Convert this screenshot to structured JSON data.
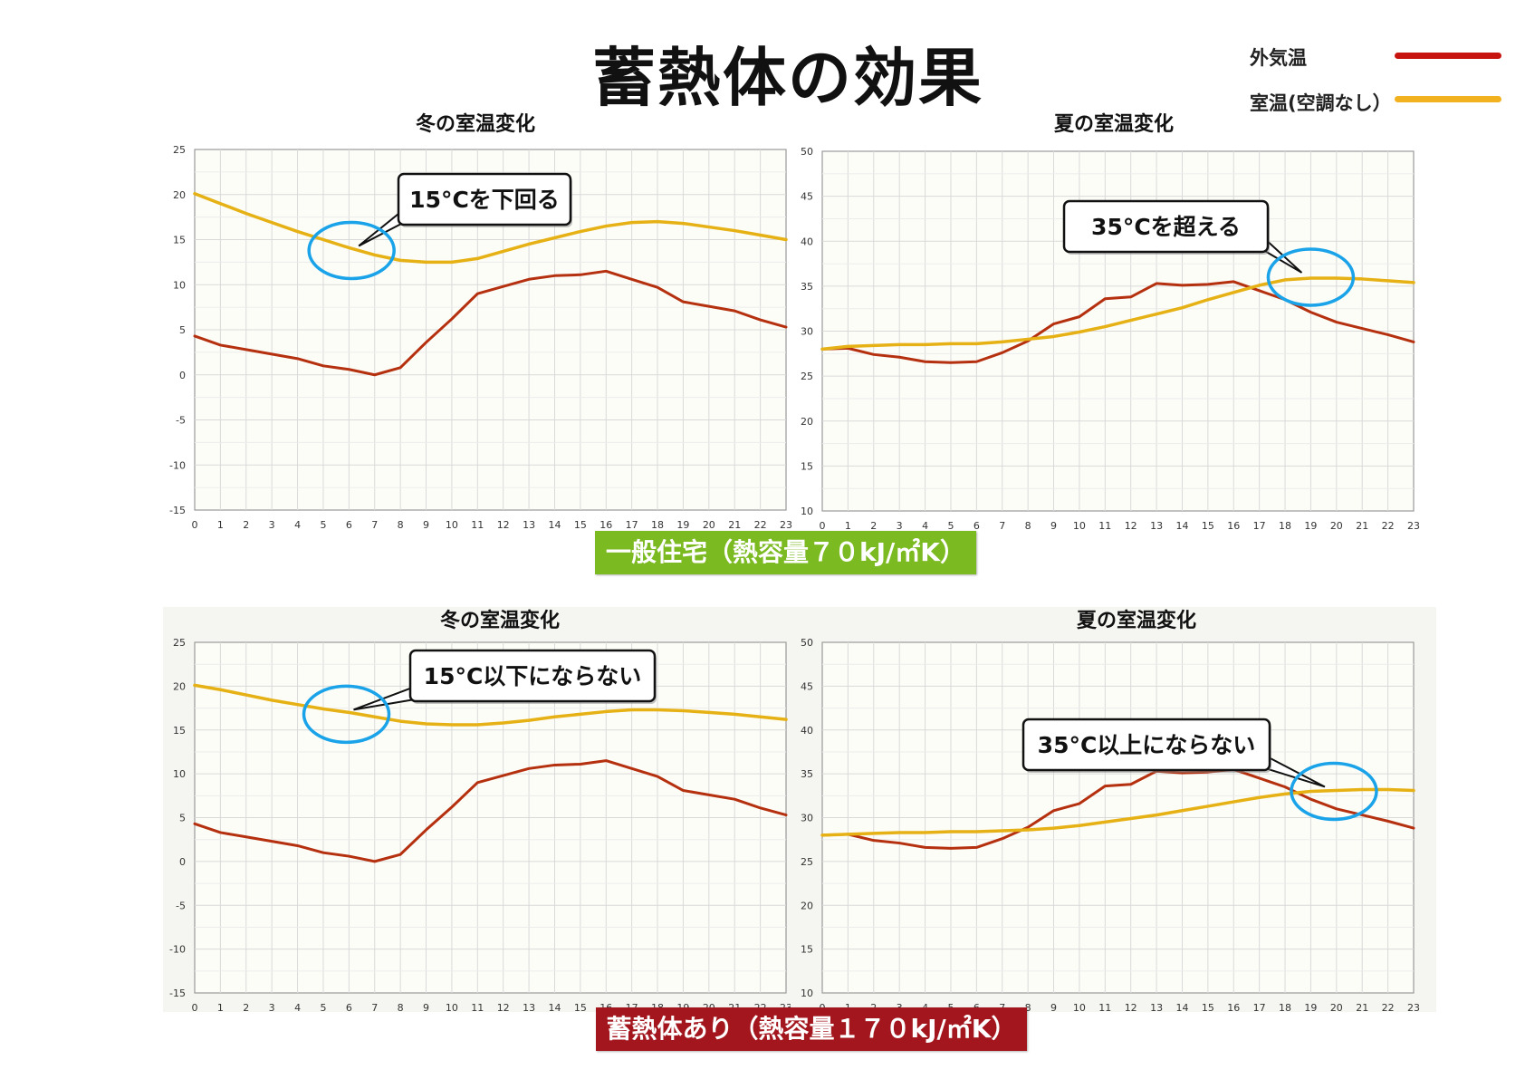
{
  "title": "蓄熱体の効果",
  "legend": {
    "items": [
      {
        "label": "外気温",
        "color": "#c8140f"
      },
      {
        "label": "室温(空調なし）",
        "color": "#f2b21f"
      }
    ]
  },
  "colors": {
    "outdoor": "#b5300f",
    "indoor": "#e6b114",
    "grid": "#d9d9d9",
    "callout_circle": "#1aa3e8"
  },
  "badges": {
    "general": "一般住宅（熱容量７０kJ/㎡K）",
    "thermal": "蓄熱体あり（熱容量１７０kJ/㎡K）"
  },
  "chart_data": [
    {
      "type": "line",
      "title": "冬の室温変化",
      "x": [
        0,
        1,
        2,
        3,
        4,
        5,
        6,
        7,
        8,
        9,
        10,
        11,
        12,
        13,
        14,
        15,
        16,
        17,
        18,
        19,
        20,
        21,
        22,
        23
      ],
      "ylim": [
        -15,
        25
      ],
      "yticks": [
        -15,
        -10,
        -5,
        0,
        5,
        10,
        15,
        20,
        25
      ],
      "grid": true,
      "series": [
        {
          "key": "outdoor",
          "values": [
            4.3,
            3.3,
            2.8,
            2.3,
            1.8,
            1.0,
            0.6,
            0.0,
            0.8,
            3.6,
            6.2,
            9.0,
            9.8,
            10.6,
            11.0,
            11.1,
            11.5,
            10.6,
            9.7,
            8.1,
            7.6,
            7.1,
            6.1,
            5.3
          ]
        },
        {
          "key": "indoor",
          "values": [
            20.1,
            19.0,
            17.9,
            16.9,
            15.9,
            15.0,
            14.1,
            13.3,
            12.7,
            12.5,
            12.5,
            12.9,
            13.7,
            14.5,
            15.2,
            15.9,
            16.5,
            16.9,
            17.0,
            16.8,
            16.4,
            16.0,
            15.5,
            15.0
          ]
        }
      ],
      "callout": {
        "text": "15°Cを下回る",
        "x": 6.1,
        "y": 13.8
      }
    },
    {
      "type": "line",
      "title": "夏の室温変化",
      "x": [
        0,
        1,
        2,
        3,
        4,
        5,
        6,
        7,
        8,
        9,
        10,
        11,
        12,
        13,
        14,
        15,
        16,
        17,
        18,
        19,
        20,
        21,
        22,
        23
      ],
      "ylim": [
        10,
        50
      ],
      "yticks": [
        10,
        15,
        20,
        25,
        30,
        35,
        40,
        45,
        50
      ],
      "grid": true,
      "series": [
        {
          "key": "outdoor",
          "values": [
            28.0,
            28.1,
            27.4,
            27.1,
            26.6,
            26.5,
            26.6,
            27.6,
            28.9,
            30.8,
            31.6,
            33.6,
            33.8,
            35.3,
            35.1,
            35.2,
            35.5,
            34.5,
            33.5,
            32.1,
            31.0,
            30.3,
            29.6,
            28.8
          ]
        },
        {
          "key": "indoor",
          "values": [
            28.0,
            28.3,
            28.4,
            28.5,
            28.5,
            28.6,
            28.6,
            28.8,
            29.1,
            29.4,
            29.9,
            30.5,
            31.2,
            31.9,
            32.6,
            33.5,
            34.3,
            35.1,
            35.7,
            35.9,
            35.9,
            35.8,
            35.6,
            35.4
          ]
        }
      ],
      "callout": {
        "text": "35°Cを超える",
        "x": 19.0,
        "y": 36.0
      }
    },
    {
      "type": "line",
      "title": "冬の室温変化",
      "x": [
        0,
        1,
        2,
        3,
        4,
        5,
        6,
        7,
        8,
        9,
        10,
        11,
        12,
        13,
        14,
        15,
        16,
        17,
        18,
        19,
        20,
        21,
        22,
        23
      ],
      "ylim": [
        -15,
        25
      ],
      "yticks": [
        -15,
        -10,
        -5,
        0,
        5,
        10,
        15,
        20,
        25
      ],
      "grid": true,
      "series": [
        {
          "key": "outdoor",
          "values": [
            4.3,
            3.3,
            2.8,
            2.3,
            1.8,
            1.0,
            0.6,
            0.0,
            0.8,
            3.6,
            6.2,
            9.0,
            9.8,
            10.6,
            11.0,
            11.1,
            11.5,
            10.6,
            9.7,
            8.1,
            7.6,
            7.1,
            6.1,
            5.3
          ]
        },
        {
          "key": "indoor",
          "values": [
            20.1,
            19.6,
            19.0,
            18.4,
            17.9,
            17.4,
            17.0,
            16.5,
            16.0,
            15.7,
            15.6,
            15.6,
            15.8,
            16.1,
            16.5,
            16.8,
            17.1,
            17.3,
            17.3,
            17.2,
            17.0,
            16.8,
            16.5,
            16.2
          ]
        }
      ],
      "callout": {
        "text": "15°C以下にならない",
        "x": 5.9,
        "y": 16.8
      }
    },
    {
      "type": "line",
      "title": "夏の室温変化",
      "x": [
        0,
        1,
        2,
        3,
        4,
        5,
        6,
        7,
        8,
        9,
        10,
        11,
        12,
        13,
        14,
        15,
        16,
        17,
        18,
        19,
        20,
        21,
        22,
        23
      ],
      "ylim": [
        10,
        50
      ],
      "yticks": [
        10,
        15,
        20,
        25,
        30,
        35,
        40,
        45,
        50
      ],
      "grid": true,
      "series": [
        {
          "key": "outdoor",
          "values": [
            28.0,
            28.1,
            27.4,
            27.1,
            26.6,
            26.5,
            26.6,
            27.6,
            28.9,
            30.8,
            31.6,
            33.6,
            33.8,
            35.3,
            35.1,
            35.2,
            35.5,
            34.5,
            33.5,
            32.1,
            31.0,
            30.3,
            29.6,
            28.8
          ]
        },
        {
          "key": "indoor",
          "values": [
            28.0,
            28.1,
            28.2,
            28.3,
            28.3,
            28.4,
            28.4,
            28.5,
            28.6,
            28.8,
            29.1,
            29.5,
            29.9,
            30.3,
            30.8,
            31.3,
            31.8,
            32.3,
            32.7,
            33.0,
            33.1,
            33.2,
            33.2,
            33.1
          ]
        }
      ],
      "callout": {
        "text": "35°C以上にならない",
        "x": 19.9,
        "y": 33.0
      }
    }
  ]
}
